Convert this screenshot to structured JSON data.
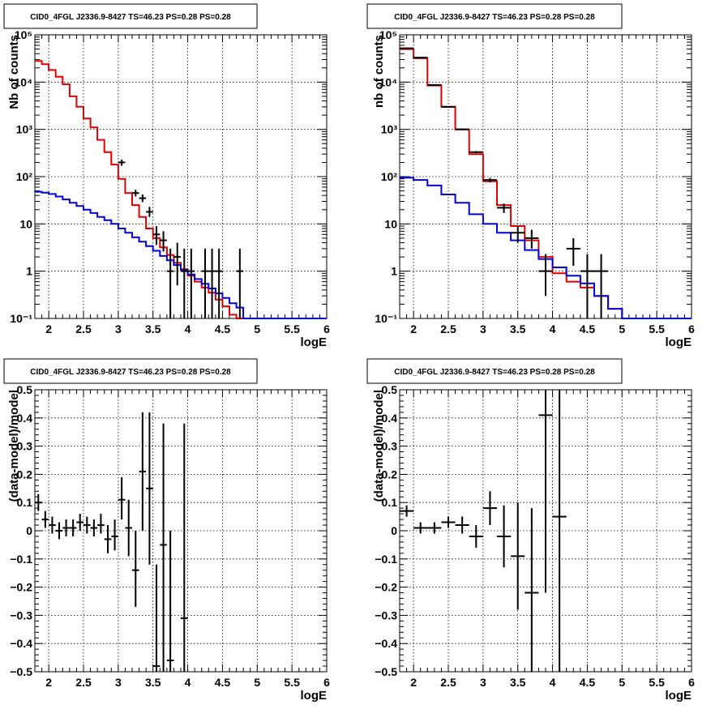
{
  "chart_data": [
    {
      "type": "histogram",
      "title": "CID0_4FGL J2336.9-8427 TS=46.23 PS=0.28 PS=0.28",
      "xlabel": "logE",
      "ylabel": "Nb of counts",
      "xlim": [
        1.8,
        6.0
      ],
      "ylim": [
        0.1,
        100000
      ],
      "yscale": "log",
      "grid": true,
      "x_ticks": [
        "2",
        "2.5",
        "3",
        "3.5",
        "4",
        "4.5",
        "5",
        "5.5",
        "6"
      ],
      "y_ticks": [
        "10⁻¹",
        "1",
        "10",
        "10²",
        "10³",
        "10⁴",
        "10⁵"
      ],
      "bin_edges": [
        1.8,
        1.9,
        2.0,
        2.1,
        2.2,
        2.3,
        2.4,
        2.5,
        2.6,
        2.7,
        2.8,
        2.9,
        3.0,
        3.1,
        3.2,
        3.3,
        3.4,
        3.5,
        3.6,
        3.7,
        3.8,
        3.9,
        4.0,
        4.1,
        4.2,
        4.3,
        4.4,
        4.5,
        4.6,
        4.7,
        4.8,
        4.9,
        5.0,
        5.1,
        5.2,
        5.3,
        5.4,
        5.5,
        5.6,
        5.7,
        5.8,
        5.9,
        6.0
      ],
      "series": [
        {
          "name": "",
          "color": "#e00000",
          "style": "step",
          "values": [
            28000,
            24000,
            18000,
            13000,
            9000,
            5000,
            3000,
            1700,
            1100,
            600,
            330,
            180,
            90,
            45,
            25,
            14,
            8,
            5,
            3.2,
            2.2,
            1.5,
            1.1,
            0.8,
            0.6,
            0.45,
            0.35,
            0.25,
            0.18,
            0.12,
            0.1,
            0.1,
            0.1,
            0.1,
            0.1,
            0.1,
            0.1,
            0.1,
            0.1,
            0.1,
            0.1,
            0.1,
            0.1
          ]
        },
        {
          "name": "",
          "color": "#0000e0",
          "style": "step",
          "values": [
            48,
            46,
            43,
            38,
            33,
            28,
            24,
            20,
            17,
            14,
            12,
            10,
            8,
            6.5,
            5.2,
            4.2,
            3.4,
            2.7,
            2.1,
            1.7,
            1.35,
            1.05,
            0.85,
            0.68,
            0.54,
            0.43,
            0.34,
            0.27,
            0.21,
            0.17,
            0.1,
            0.1,
            0.1,
            0.1,
            0.1,
            0.1,
            0.1,
            0.1,
            0.1,
            0.1,
            0.1,
            0.1
          ]
        }
      ],
      "data_points": [
        {
          "x": 3.05,
          "y": 200,
          "xerr": 0.05,
          "ylo": 170,
          "yhi": 230
        },
        {
          "x": 3.25,
          "y": 45,
          "xerr": 0.05,
          "ylo": 38,
          "yhi": 53
        },
        {
          "x": 3.35,
          "y": 35,
          "xerr": 0.05,
          "ylo": 29,
          "yhi": 42
        },
        {
          "x": 3.45,
          "y": 18,
          "xerr": 0.05,
          "ylo": 14,
          "yhi": 23
        },
        {
          "x": 3.55,
          "y": 6,
          "xerr": 0.05,
          "ylo": 3.6,
          "yhi": 9
        },
        {
          "x": 3.65,
          "y": 4.5,
          "xerr": 0.05,
          "ylo": 2.6,
          "yhi": 7
        },
        {
          "x": 3.75,
          "y": 1,
          "xerr": 0.05,
          "ylo": 0.1,
          "yhi": 3
        },
        {
          "x": 3.85,
          "y": 2,
          "xerr": 0.05,
          "ylo": 0.5,
          "yhi": 4
        },
        {
          "x": 3.95,
          "y": 1,
          "xerr": 0.05,
          "ylo": 0.1,
          "yhi": 3
        },
        {
          "x": 4.05,
          "y": 1,
          "xerr": 0.05,
          "ylo": 0.1,
          "yhi": 3
        },
        {
          "x": 4.25,
          "y": 1,
          "xerr": 0.05,
          "ylo": 0.1,
          "yhi": 3
        },
        {
          "x": 4.35,
          "y": 1,
          "xerr": 0.05,
          "ylo": 0.1,
          "yhi": 3
        },
        {
          "x": 4.45,
          "y": 1,
          "xerr": 0.05,
          "ylo": 0.1,
          "yhi": 3
        },
        {
          "x": 4.75,
          "y": 1,
          "xerr": 0.05,
          "ylo": 0.1,
          "yhi": 3
        }
      ]
    },
    {
      "type": "histogram",
      "title": "CID0_4FGL J2336.9-8427 TS=46.23 PS=0.28 PS=0.28",
      "xlabel": "logE",
      "ylabel": "nb of counts",
      "xlim": [
        1.8,
        6.0
      ],
      "ylim": [
        0.1,
        100000
      ],
      "yscale": "log",
      "grid": true,
      "x_ticks": [
        "2",
        "2.5",
        "3",
        "3.5",
        "4",
        "4.5",
        "5",
        "5.5",
        "6"
      ],
      "y_ticks": [
        "10⁻¹",
        "1",
        "10",
        "10²",
        "10³",
        "10⁴",
        "10⁵"
      ],
      "bin_edges": [
        1.8,
        2.0,
        2.2,
        2.4,
        2.6,
        2.8,
        3.0,
        3.2,
        3.4,
        3.6,
        3.8,
        4.0,
        4.2,
        4.4,
        4.6,
        4.8,
        5.0,
        5.2,
        5.4,
        5.6,
        5.8,
        6.0
      ],
      "series": [
        {
          "name": "",
          "color": "#e00000",
          "style": "step",
          "values": [
            50000,
            32000,
            8500,
            3000,
            1000,
            300,
            80,
            25,
            9,
            4.5,
            2,
            0.9,
            0.6,
            0.45,
            0.3,
            0.16,
            0.1,
            0.1,
            0.1,
            0.1,
            0.1
          ]
        },
        {
          "name": "",
          "color": "#0000e0",
          "style": "step",
          "values": [
            95,
            85,
            65,
            42,
            28,
            16,
            10,
            6.5,
            4.5,
            2.8,
            1.8,
            1.2,
            0.8,
            0.55,
            0.3,
            0.16,
            0.1,
            0.1,
            0.1,
            0.1,
            0.1
          ]
        }
      ],
      "data_points": [
        {
          "x": 1.9,
          "y": 52000,
          "xerr": 0.1,
          "ylo": 51000,
          "yhi": 53000
        },
        {
          "x": 2.1,
          "y": 33000,
          "xerr": 0.1,
          "ylo": 32500,
          "yhi": 33500
        },
        {
          "x": 2.3,
          "y": 8700,
          "xerr": 0.1,
          "ylo": 8500,
          "yhi": 8900
        },
        {
          "x": 2.5,
          "y": 3000,
          "xerr": 0.1,
          "ylo": 2900,
          "yhi": 3100
        },
        {
          "x": 2.7,
          "y": 1000,
          "xerr": 0.1,
          "ylo": 960,
          "yhi": 1040
        },
        {
          "x": 2.9,
          "y": 330,
          "xerr": 0.1,
          "ylo": 312,
          "yhi": 348
        },
        {
          "x": 3.1,
          "y": 85,
          "xerr": 0.1,
          "ylo": 76,
          "yhi": 94
        },
        {
          "x": 3.3,
          "y": 22,
          "xerr": 0.1,
          "ylo": 17,
          "yhi": 27
        },
        {
          "x": 3.5,
          "y": 6.5,
          "xerr": 0.1,
          "ylo": 4,
          "yhi": 9
        },
        {
          "x": 3.7,
          "y": 5,
          "xerr": 0.1,
          "ylo": 3,
          "yhi": 7.5
        },
        {
          "x": 3.9,
          "y": 1,
          "xerr": 0.1,
          "ylo": 0.3,
          "yhi": 2.3
        },
        {
          "x": 4.3,
          "y": 3,
          "xerr": 0.1,
          "ylo": 1.3,
          "yhi": 5
        },
        {
          "x": 4.5,
          "y": 1,
          "xerr": 0.1,
          "ylo": 0.1,
          "yhi": 2.3
        },
        {
          "x": 4.7,
          "y": 1,
          "xerr": 0.1,
          "ylo": 0.1,
          "yhi": 2.3
        }
      ]
    },
    {
      "type": "scatter",
      "title": "CID0_4FGL J2336.9-8427 TS=46.23 PS=0.28 PS=0.28",
      "xlabel": "logE",
      "ylabel": "(data-model)/model",
      "xlim": [
        1.8,
        6.0
      ],
      "ylim": [
        -0.5,
        0.5
      ],
      "grid": true,
      "x_ticks": [
        "2",
        "2.5",
        "3",
        "3.5",
        "4",
        "4.5",
        "5",
        "5.5",
        "6"
      ],
      "y_ticks": [
        "−0.5",
        "−0.4",
        "−0.3",
        "−0.2",
        "−0.1",
        "0",
        "0.1",
        "0.2",
        "0.3",
        "0.4",
        "0.5"
      ],
      "y_tick_values": [
        -0.5,
        -0.4,
        -0.3,
        -0.2,
        -0.1,
        0,
        0.1,
        0.2,
        0.3,
        0.4,
        0.5
      ],
      "data_points": [
        {
          "x": 1.85,
          "y": 0.1,
          "xerr": 0.05,
          "ylo": 0.07,
          "yhi": 0.13
        },
        {
          "x": 1.95,
          "y": 0.04,
          "xerr": 0.05,
          "ylo": 0.01,
          "yhi": 0.07
        },
        {
          "x": 2.05,
          "y": 0.02,
          "xerr": 0.05,
          "ylo": -0.01,
          "yhi": 0.05
        },
        {
          "x": 2.15,
          "y": 0.0,
          "xerr": 0.05,
          "ylo": -0.03,
          "yhi": 0.03
        },
        {
          "x": 2.25,
          "y": 0.01,
          "xerr": 0.05,
          "ylo": -0.02,
          "yhi": 0.04
        },
        {
          "x": 2.35,
          "y": 0.01,
          "xerr": 0.05,
          "ylo": -0.02,
          "yhi": 0.04
        },
        {
          "x": 2.45,
          "y": 0.03,
          "xerr": 0.05,
          "ylo": 0.0,
          "yhi": 0.06
        },
        {
          "x": 2.55,
          "y": 0.02,
          "xerr": 0.05,
          "ylo": -0.01,
          "yhi": 0.05
        },
        {
          "x": 2.65,
          "y": 0.01,
          "xerr": 0.05,
          "ylo": -0.02,
          "yhi": 0.04
        },
        {
          "x": 2.75,
          "y": 0.02,
          "xerr": 0.05,
          "ylo": -0.01,
          "yhi": 0.06
        },
        {
          "x": 2.85,
          "y": -0.03,
          "xerr": 0.05,
          "ylo": -0.08,
          "yhi": 0.02
        },
        {
          "x": 2.95,
          "y": -0.02,
          "xerr": 0.05,
          "ylo": -0.07,
          "yhi": 0.04
        },
        {
          "x": 3.05,
          "y": 0.11,
          "xerr": 0.05,
          "ylo": 0.04,
          "yhi": 0.19
        },
        {
          "x": 3.15,
          "y": 0.01,
          "xerr": 0.05,
          "ylo": -0.09,
          "yhi": 0.11
        },
        {
          "x": 3.25,
          "y": -0.14,
          "xerr": 0.05,
          "ylo": -0.27,
          "yhi": 0.0
        },
        {
          "x": 3.35,
          "y": 0.21,
          "xerr": 0.05,
          "ylo": 0.0,
          "yhi": 0.42
        },
        {
          "x": 3.45,
          "y": 0.15,
          "xerr": 0.05,
          "ylo": -0.12,
          "yhi": 0.42
        },
        {
          "x": 3.55,
          "y": -0.48,
          "xerr": 0.05,
          "ylo": -0.5,
          "yhi": -0.12
        },
        {
          "x": 3.65,
          "y": -0.05,
          "xerr": 0.05,
          "ylo": -0.5,
          "yhi": 0.38
        },
        {
          "x": 3.75,
          "y": -0.46,
          "xerr": 0.05,
          "ylo": -0.5,
          "yhi": 0.0
        },
        {
          "x": 3.95,
          "y": -0.31,
          "xerr": 0.05,
          "ylo": -0.5,
          "yhi": 0.38
        }
      ]
    },
    {
      "type": "scatter",
      "title": "CID0_4FGL J2336.9-8427 TS=46.23 PS=0.28 PS=0.28",
      "xlabel": "logE",
      "ylabel": "(data-model)/model",
      "xlim": [
        1.8,
        6.0
      ],
      "ylim": [
        -0.5,
        0.5
      ],
      "grid": true,
      "x_ticks": [
        "2",
        "2.5",
        "3",
        "3.5",
        "4",
        "4.5",
        "5",
        "5.5",
        "6"
      ],
      "y_ticks": [
        "−0.5",
        "−0.4",
        "−0.3",
        "−0.2",
        "−0.1",
        "0",
        "0.1",
        "0.2",
        "0.3",
        "0.4",
        "0.5"
      ],
      "y_tick_values": [
        -0.5,
        -0.4,
        -0.3,
        -0.2,
        -0.1,
        0,
        0.1,
        0.2,
        0.3,
        0.4,
        0.5
      ],
      "data_points": [
        {
          "x": 1.9,
          "y": 0.07,
          "xerr": 0.1,
          "ylo": 0.05,
          "yhi": 0.09
        },
        {
          "x": 2.1,
          "y": 0.01,
          "xerr": 0.1,
          "ylo": -0.01,
          "yhi": 0.03
        },
        {
          "x": 2.3,
          "y": 0.01,
          "xerr": 0.1,
          "ylo": -0.01,
          "yhi": 0.03
        },
        {
          "x": 2.5,
          "y": 0.03,
          "xerr": 0.1,
          "ylo": 0.01,
          "yhi": 0.05
        },
        {
          "x": 2.7,
          "y": 0.02,
          "xerr": 0.1,
          "ylo": -0.01,
          "yhi": 0.05
        },
        {
          "x": 2.9,
          "y": -0.02,
          "xerr": 0.1,
          "ylo": -0.06,
          "yhi": 0.02
        },
        {
          "x": 3.1,
          "y": 0.08,
          "xerr": 0.1,
          "ylo": 0.02,
          "yhi": 0.14
        },
        {
          "x": 3.3,
          "y": -0.02,
          "xerr": 0.1,
          "ylo": -0.13,
          "yhi": 0.09
        },
        {
          "x": 3.5,
          "y": -0.09,
          "xerr": 0.1,
          "ylo": -0.28,
          "yhi": 0.1
        },
        {
          "x": 3.7,
          "y": -0.22,
          "xerr": 0.1,
          "ylo": -0.5,
          "yhi": 0.08
        },
        {
          "x": 3.9,
          "y": 0.41,
          "xerr": 0.1,
          "ylo": -0.22,
          "yhi": 0.5
        },
        {
          "x": 4.1,
          "y": 0.05,
          "xerr": 0.1,
          "ylo": -0.5,
          "yhi": 0.5
        }
      ]
    }
  ]
}
